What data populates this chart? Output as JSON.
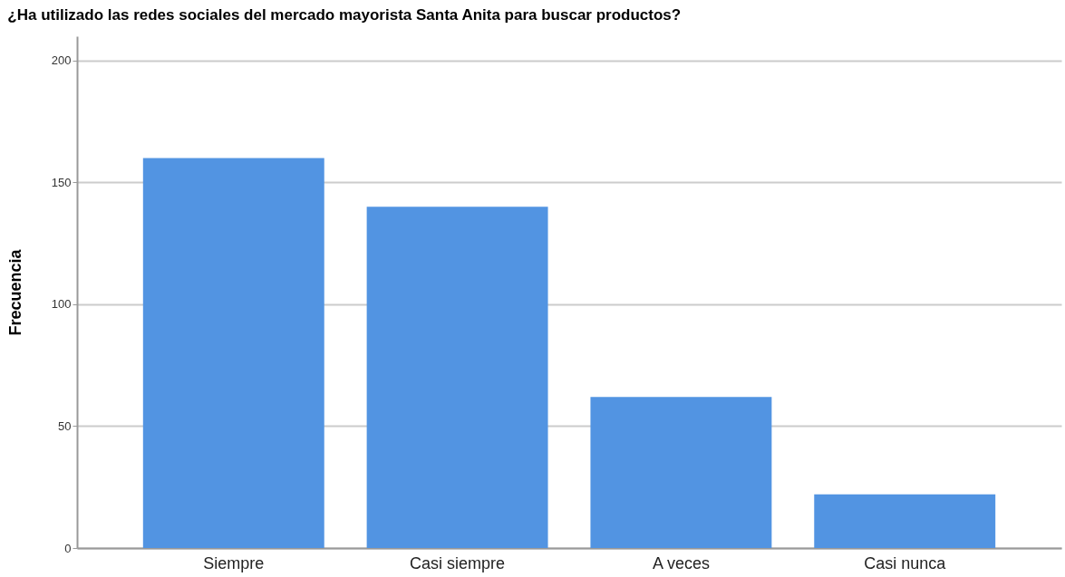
{
  "chart_data": {
    "type": "bar",
    "title": "¿Ha utilizado las redes sociales del mercado mayorista Santa Anita para buscar productos?",
    "ylabel": "Frecuencia",
    "categories": [
      "Siempre",
      "Casi siempre",
      "A veces",
      "Casi nunca"
    ],
    "values": [
      160,
      140,
      62,
      22
    ],
    "color": "#5294e2",
    "ylim": [
      0,
      210
    ],
    "yticks": [
      0,
      50,
      100,
      150,
      200
    ],
    "grid": "y"
  }
}
